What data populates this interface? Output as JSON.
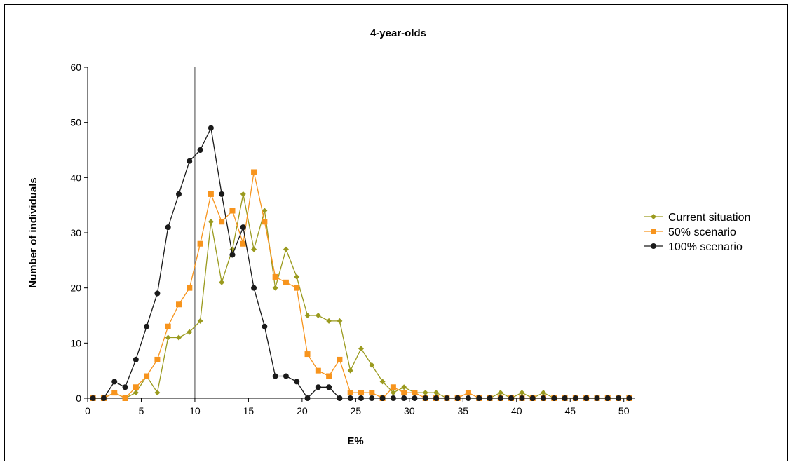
{
  "chart_data": {
    "type": "line",
    "title": "4-year-olds",
    "xlabel": "E%",
    "ylabel": "Number of individuals",
    "xlim": [
      0,
      51
    ],
    "ylim": [
      0,
      60
    ],
    "xticks": [
      0,
      5,
      10,
      15,
      20,
      25,
      30,
      35,
      40,
      45,
      50
    ],
    "yticks": [
      0,
      10,
      20,
      30,
      40,
      50,
      60
    ],
    "reference_line_x": 10,
    "grid": false,
    "legend_position": "right",
    "x": [
      0.5,
      1.5,
      2.5,
      3.5,
      4.5,
      5.5,
      6.5,
      7.5,
      8.5,
      9.5,
      10.5,
      11.5,
      12.5,
      13.5,
      14.5,
      15.5,
      16.5,
      17.5,
      18.5,
      19.5,
      20.5,
      21.5,
      22.5,
      23.5,
      24.5,
      25.5,
      26.5,
      27.5,
      28.5,
      29.5,
      30.5,
      31.5,
      32.5,
      33.5,
      34.5,
      35.5,
      36.5,
      37.5,
      38.5,
      39.5,
      40.5,
      41.5,
      42.5,
      43.5,
      44.5,
      45.5,
      46.5,
      47.5,
      48.5,
      49.5,
      50.5
    ],
    "series": [
      {
        "name": "Current situation",
        "color": "#9a9a1e",
        "marker": "diamond",
        "values": [
          0,
          0,
          1,
          0,
          1,
          4,
          1,
          11,
          11,
          12,
          14,
          32,
          21,
          27,
          37,
          27,
          34,
          20,
          27,
          22,
          15,
          15,
          14,
          14,
          5,
          9,
          6,
          3,
          1,
          2,
          1,
          1,
          1,
          0,
          0,
          0,
          0,
          0,
          1,
          0,
          1,
          0,
          1,
          0,
          0,
          0,
          0,
          0,
          0,
          0,
          0
        ]
      },
      {
        "name": "50% scenario",
        "color": "#f7941d",
        "marker": "square",
        "values": [
          0,
          0,
          1,
          0,
          2,
          4,
          7,
          13,
          17,
          20,
          28,
          37,
          32,
          34,
          28,
          41,
          32,
          22,
          21,
          20,
          8,
          5,
          4,
          7,
          1,
          1,
          1,
          0,
          2,
          1,
          1,
          0,
          0,
          0,
          0,
          1,
          0,
          0,
          0,
          0,
          0,
          0,
          0,
          0,
          0,
          0,
          0,
          0,
          0,
          0,
          0
        ]
      },
      {
        "name": "100% scenario",
        "color": "#1a1a1a",
        "marker": "circle",
        "values": [
          0,
          0,
          3,
          2,
          7,
          13,
          19,
          31,
          37,
          43,
          45,
          49,
          37,
          26,
          31,
          20,
          13,
          4,
          4,
          3,
          0,
          2,
          2,
          0,
          0,
          0,
          0,
          0,
          0,
          0,
          0,
          0,
          0,
          0,
          0,
          0,
          0,
          0,
          0,
          0,
          0,
          0,
          0,
          0,
          0,
          0,
          0,
          0,
          0,
          0,
          0
        ]
      }
    ]
  }
}
